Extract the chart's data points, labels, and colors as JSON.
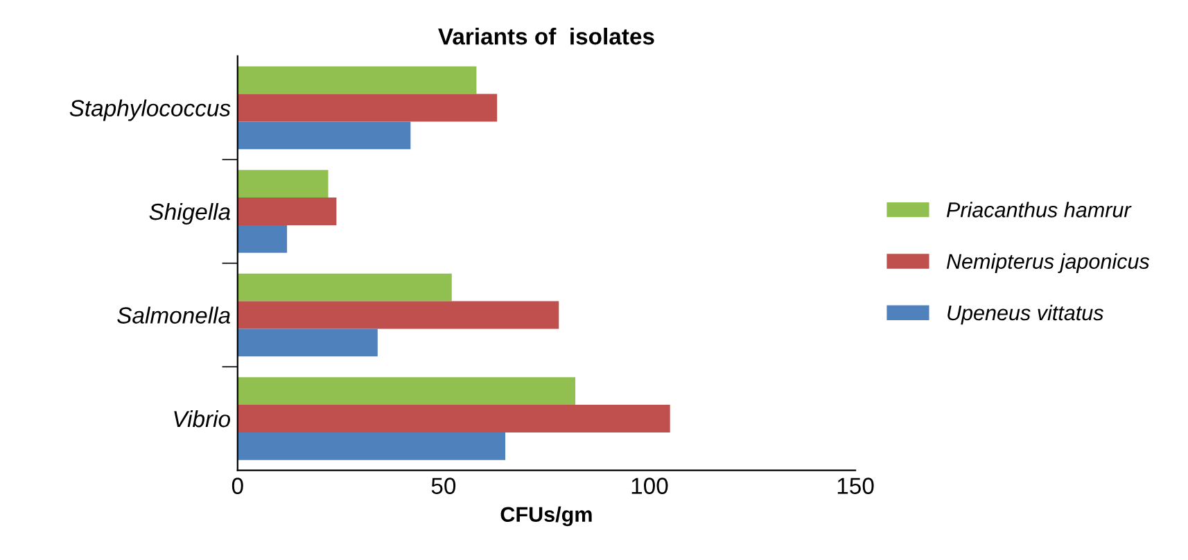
{
  "chart_data": {
    "type": "bar",
    "orientation": "horizontal",
    "title": "Variants of  isolates",
    "xlabel": "CFUs/gm",
    "categories": [
      "Staphylococcus",
      "Shigella",
      "Salmonella",
      "Vibrio"
    ],
    "series": [
      {
        "name": "Priacanthus hamrur",
        "color": "#92c050",
        "values": [
          58,
          22,
          52,
          82
        ]
      },
      {
        "name": "Nemipterus japonicus",
        "color": "#c0504d",
        "values": [
          63,
          24,
          78,
          105
        ]
      },
      {
        "name": "Upeneus vittatus",
        "color": "#4f81bd",
        "values": [
          42,
          12,
          34,
          65
        ]
      }
    ],
    "xlim": [
      0,
      150
    ],
    "xticks": [
      0,
      50,
      100,
      150
    ],
    "grid": false,
    "legend": "right"
  }
}
